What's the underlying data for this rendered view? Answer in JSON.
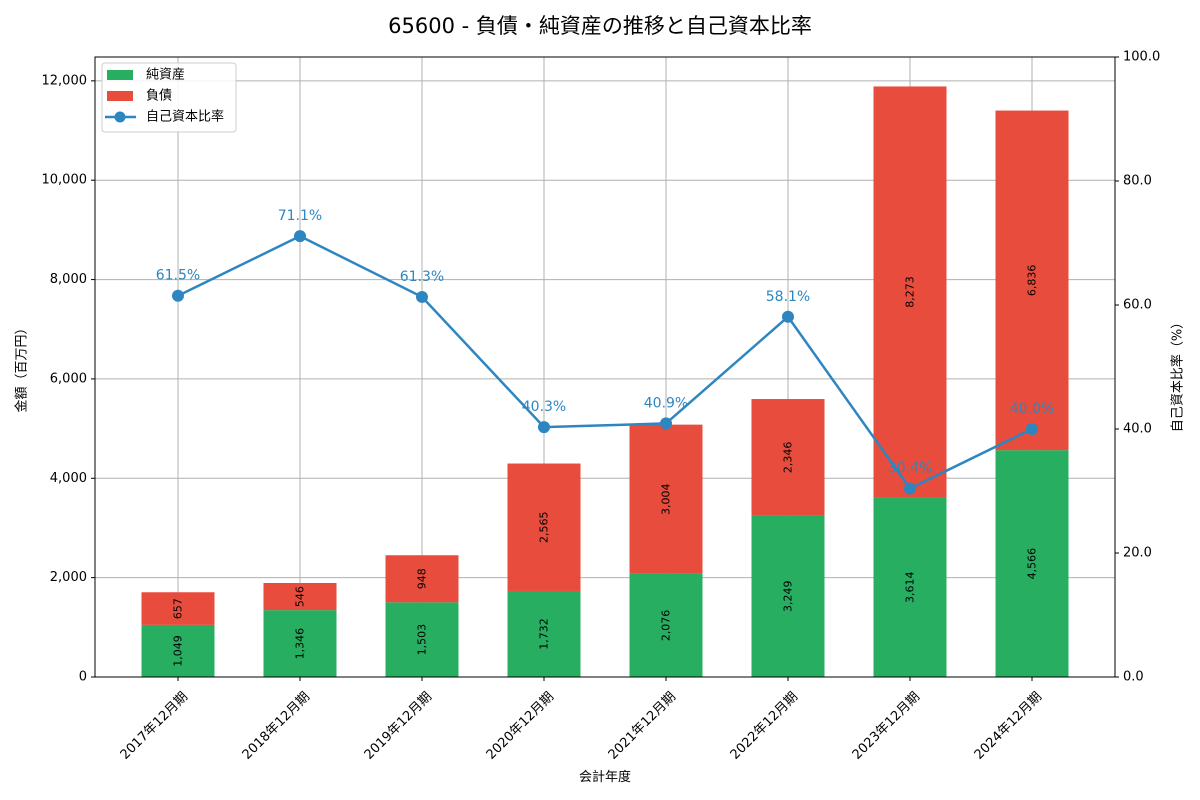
{
  "title": "65600 - 負債・純資産の推移と自己資本比率",
  "colors": {
    "net_assets": "#27ae60",
    "liabilities": "#e74c3c",
    "ratio": "#2e86c1",
    "grid": "#b0b0b0"
  },
  "chart_data": {
    "type": "bar",
    "subtype": "stacked bar with line on secondary axis",
    "title": "65600 - 負債・純資産の推移と自己資本比率",
    "xlabel": "会計年度",
    "ylabel": "金額（百万円）",
    "y2label": "自己資本比率（%）",
    "categories": [
      "2017年12月期",
      "2018年12月期",
      "2019年12月期",
      "2020年12月期",
      "2021年12月期",
      "2022年12月期",
      "2023年12月期",
      "2024年12月期"
    ],
    "series": [
      {
        "name": "純資産",
        "type": "bar",
        "axis": "left",
        "values": [
          1049,
          1346,
          1503,
          1732,
          2076,
          3249,
          3614,
          4566
        ],
        "labels": [
          "1,049",
          "1,346",
          "1,503",
          "1,732",
          "2,076",
          "3,249",
          "3,614",
          "4,566"
        ]
      },
      {
        "name": "負債",
        "type": "bar",
        "axis": "left",
        "values": [
          657,
          546,
          948,
          2565,
          3004,
          2346,
          8273,
          6836
        ],
        "labels": [
          "657",
          "546",
          "948",
          "2,565",
          "3,004",
          "2,346",
          "8,273",
          "6,836"
        ]
      },
      {
        "name": "自己資本比率",
        "type": "line",
        "axis": "right",
        "values": [
          61.5,
          71.1,
          61.3,
          40.3,
          40.9,
          58.1,
          30.4,
          40.0
        ],
        "labels": [
          "61.5%",
          "71.1%",
          "61.3%",
          "40.3%",
          "40.9%",
          "58.1%",
          "30.4%",
          "40.0%"
        ]
      }
    ],
    "ylim": [
      0,
      12480
    ],
    "y2lim": [
      0,
      100
    ],
    "yticks": [
      0,
      2000,
      4000,
      6000,
      8000,
      10000,
      12000
    ],
    "ytick_labels": [
      "0",
      "2,000",
      "4,000",
      "6,000",
      "8,000",
      "10,000",
      "12,000"
    ],
    "y2ticks": [
      0,
      20,
      40,
      60,
      80,
      100
    ],
    "y2tick_labels": [
      "0.0",
      "20.0",
      "40.0",
      "60.0",
      "80.0",
      "100.0"
    ],
    "grid": true,
    "legend_position": "upper left",
    "legend": [
      "純資産",
      "負債",
      "自己資本比率"
    ]
  }
}
